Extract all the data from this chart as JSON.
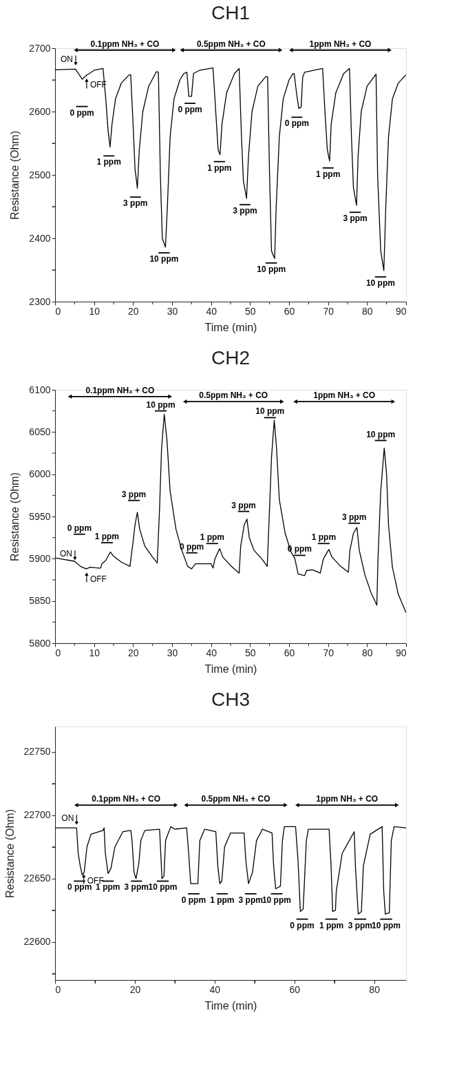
{
  "chart_data": [
    {
      "type": "line",
      "title": "CH1",
      "xlabel": "Time (min)",
      "ylabel": "Resistance (Ohm)",
      "xlim": [
        0,
        90
      ],
      "xticks": [
        0,
        {
          "value": 5,
          "label": null
        },
        10,
        {
          "value": 15,
          "label": null
        },
        20,
        {
          "value": 25,
          "label": null
        },
        30,
        {
          "value": 35,
          "label": null
        },
        40,
        {
          "value": 45,
          "label": null
        },
        50,
        {
          "value": 55,
          "label": null
        },
        60,
        {
          "value": 65,
          "label": null
        },
        70,
        {
          "value": 75,
          "label": null
        },
        80,
        {
          "value": 85,
          "label": null
        },
        90
      ],
      "ylim": [
        2300,
        2700
      ],
      "yticks": [
        2300,
        {
          "value": 2350,
          "label": null
        },
        2400,
        {
          "value": 2450,
          "label": null
        },
        2500,
        {
          "value": 2550,
          "label": null
        },
        2600,
        {
          "value": 2650,
          "label": null
        },
        2700
      ],
      "series": [
        {
          "color": "#000000",
          "x": [
            0,
            5.2,
            7,
            8,
            10,
            12.3,
            13,
            13.6,
            14.1,
            14.6,
            15.5,
            17,
            19,
            19.4,
            20,
            20.5,
            21.1,
            21.6,
            22.5,
            24,
            26,
            26.5,
            27,
            27.5,
            28.3,
            28.8,
            29.5,
            30.5,
            32,
            33,
            33.8,
            34.3,
            35,
            35.5,
            37,
            40.5,
            41,
            41.8,
            42.3,
            42.8,
            44,
            46,
            47.2,
            47.8,
            48.3,
            49.1,
            49.6,
            50.5,
            52,
            54,
            54.5,
            55,
            55.5,
            56.3,
            56.7,
            57.5,
            58.5,
            60,
            61,
            61.3,
            62,
            62.5,
            63.1,
            63.5,
            64,
            68.6,
            69.2,
            69.8,
            70.4,
            70.8,
            72,
            74,
            75.5,
            76,
            76.5,
            77.3,
            77.7,
            78.5,
            80,
            82.3,
            82.7,
            83.5,
            84.3,
            84.8,
            85.5,
            86.5,
            88,
            90
          ],
          "values": [
            2666,
            2667,
            2651,
            2657,
            2665,
            2668,
            2620,
            2570,
            2544,
            2580,
            2620,
            2645,
            2658,
            2658,
            2580,
            2510,
            2479,
            2540,
            2600,
            2640,
            2663,
            2662,
            2500,
            2400,
            2386,
            2450,
            2560,
            2620,
            2650,
            2660,
            2662,
            2624,
            2624,
            2660,
            2665,
            2669,
            2620,
            2540,
            2532,
            2580,
            2630,
            2660,
            2668,
            2560,
            2490,
            2463,
            2530,
            2600,
            2640,
            2655,
            2655,
            2500,
            2380,
            2368,
            2450,
            2560,
            2620,
            2650,
            2660,
            2660,
            2625,
            2605,
            2607,
            2655,
            2662,
            2668,
            2600,
            2540,
            2522,
            2580,
            2630,
            2660,
            2668,
            2560,
            2480,
            2452,
            2530,
            2600,
            2640,
            2659,
            2500,
            2380,
            2349,
            2450,
            2560,
            2620,
            2645,
            2658
          ]
        },
        {
          "name": "0 ppm",
          "color": "#000000",
          "x": [
            5.4,
            8.4
          ],
          "values": [
            2608,
            2608
          ]
        },
        {
          "name": "1 ppm",
          "color": "#000000",
          "x": [
            12.4,
            15.2
          ],
          "values": [
            2530,
            2530
          ]
        },
        {
          "name": "3 ppm",
          "color": "#000000",
          "x": [
            19.2,
            22
          ],
          "values": [
            2465,
            2465
          ]
        },
        {
          "name": "10 ppm",
          "color": "#000000",
          "x": [
            26.5,
            29.4
          ],
          "values": [
            2377,
            2377
          ]
        },
        {
          "name": "0 ppm",
          "color": "#000000",
          "x": [
            33.2,
            36
          ],
          "values": [
            2613,
            2613
          ]
        },
        {
          "name": "1 ppm",
          "color": "#000000",
          "x": [
            40.7,
            43.6
          ],
          "values": [
            2521,
            2521
          ]
        },
        {
          "name": "3 ppm",
          "color": "#000000",
          "x": [
            47.3,
            50.1
          ],
          "values": [
            2453,
            2453
          ]
        },
        {
          "name": "10 ppm",
          "color": "#000000",
          "x": [
            54,
            56.9
          ],
          "values": [
            2361,
            2361
          ]
        },
        {
          "name": "0 ppm",
          "color": "#000000",
          "x": [
            60.6,
            63.4
          ],
          "values": [
            2591,
            2591
          ]
        },
        {
          "name": "1 ppm",
          "color": "#000000",
          "x": [
            68.6,
            71.4
          ],
          "values": [
            2511,
            2511
          ]
        },
        {
          "name": "3 ppm",
          "color": "#000000",
          "x": [
            75.5,
            78.4
          ],
          "values": [
            2441,
            2441
          ]
        },
        {
          "name": "10 ppm",
          "color": "#000000",
          "x": [
            82,
            84.9
          ],
          "values": [
            2339,
            2339
          ]
        },
        {
          "name": "0.1ppm NH₃ + CO",
          "color": "#000000",
          "marker": "triangle",
          "x": [
            5.3,
            30.5
          ],
          "values": [
            2697,
            2697
          ]
        },
        {
          "name": "0.5ppm NH₃ + CO",
          "color": "#000000",
          "marker": "triangle",
          "x": [
            32.5,
            57.8
          ],
          "values": [
            2697,
            2697
          ]
        },
        {
          "name": "1ppm NH₃ + CO",
          "color": "#000000",
          "marker": "triangle",
          "x": [
            60.5,
            85.8
          ],
          "values": [
            2697,
            2697
          ]
        }
      ],
      "annotations": [
        {
          "text": "ON",
          "x": 5.3,
          "y": 2670
        },
        {
          "text": "OFF",
          "x": 8.1,
          "y": 2655
        }
      ]
    },
    {
      "type": "line",
      "title": "CH2",
      "xlabel": "Time (min)",
      "ylabel": "Resistance (Ohm)",
      "xlim": [
        0,
        90
      ],
      "xticks": [
        0,
        {
          "value": 5,
          "label": null
        },
        10,
        {
          "value": 15,
          "label": null
        },
        20,
        {
          "value": 25,
          "label": null
        },
        30,
        {
          "value": 35,
          "label": null
        },
        40,
        {
          "value": 45,
          "label": null
        },
        50,
        {
          "value": 55,
          "label": null
        },
        60,
        {
          "value": 65,
          "label": null
        },
        70,
        {
          "value": 75,
          "label": null
        },
        80,
        {
          "value": 85,
          "label": null
        },
        90
      ],
      "ylim": [
        5800,
        6100
      ],
      "yticks": [
        5800,
        {
          "value": 5825,
          "label": null
        },
        5850,
        {
          "value": 5875,
          "label": null
        },
        5900,
        {
          "value": 5925,
          "label": null
        },
        5950,
        {
          "value": 5975,
          "label": null
        },
        6000,
        {
          "value": 6025,
          "label": null
        },
        6050,
        {
          "value": 6075,
          "label": null
        },
        6100
      ],
      "series": [
        {
          "color": "#000000",
          "x": [
            0,
            5,
            6.5,
            8,
            9,
            11,
            11.7,
            12,
            12.5,
            13,
            14.2,
            15,
            17,
            19.2,
            20,
            20.5,
            21.1,
            21.7,
            23,
            25,
            26.2,
            26.8,
            27.3,
            28,
            28.7,
            29.5,
            31,
            32.5,
            34,
            35,
            36,
            40,
            40.5,
            41,
            42.2,
            43,
            45,
            47.2,
            47.6,
            48.5,
            49.2,
            49.8,
            51,
            53,
            54.4,
            55,
            55.5,
            56.2,
            56.8,
            57.5,
            59,
            60.5,
            61.5,
            62.3,
            64,
            64.5,
            66,
            68,
            68.8,
            70.2,
            71,
            73,
            75.2,
            75.6,
            76.5,
            77.4,
            78,
            79.5,
            81,
            82.5,
            82.8,
            83.5,
            84.4,
            85,
            85.5,
            86.5,
            88,
            90
          ],
          "values": [
            5901,
            5897,
            5891,
            5888,
            5890,
            5889,
            5889,
            5894,
            5896,
            5898,
            5908,
            5903,
            5896,
            5891,
            5920,
            5940,
            5955,
            5935,
            5915,
            5902,
            5895,
            5960,
            6030,
            6071,
            6040,
            5980,
            5935,
            5910,
            5891,
            5888,
            5894,
            5894,
            5889,
            5900,
            5912,
            5902,
            5892,
            5883,
            5915,
            5940,
            5947,
            5925,
            5910,
            5900,
            5891,
            5960,
            6020,
            6064,
            6030,
            5970,
            5930,
            5908,
            5900,
            5882,
            5880,
            5886,
            5887,
            5883,
            5900,
            5911,
            5902,
            5892,
            5884,
            5910,
            5930,
            5937,
            5910,
            5880,
            5860,
            5845,
            5900,
            5980,
            6031,
            6000,
            5940,
            5890,
            5858,
            5836
          ]
        },
        {
          "name": "0 ppm",
          "color": "#000000",
          "x": [
            4.8,
            7.7
          ],
          "values": [
            5929,
            5929
          ]
        },
        {
          "name": "1 ppm",
          "color": "#000000",
          "x": [
            11.8,
            14.8
          ],
          "values": [
            5919,
            5919
          ]
        },
        {
          "name": "3 ppm",
          "color": "#000000",
          "x": [
            18.7,
            21.7
          ],
          "values": [
            5969,
            5969
          ]
        },
        {
          "name": "10 ppm",
          "color": "#000000",
          "x": [
            25.6,
            28.6
          ],
          "values": [
            6075,
            6075
          ]
        },
        {
          "name": "0 ppm",
          "color": "#000000",
          "x": [
            33.6,
            36.5
          ],
          "values": [
            5907,
            5907
          ]
        },
        {
          "name": "1 ppm",
          "color": "#000000",
          "x": [
            38.8,
            41.8
          ],
          "values": [
            5918,
            5918
          ]
        },
        {
          "name": "3 ppm",
          "color": "#000000",
          "x": [
            46.9,
            49.8
          ],
          "values": [
            5956,
            5956
          ]
        },
        {
          "name": "10 ppm",
          "color": "#000000",
          "x": [
            53.6,
            56.6
          ],
          "values": [
            6067,
            6067
          ]
        },
        {
          "name": "0 ppm",
          "color": "#000000",
          "x": [
            61.2,
            64.2
          ],
          "values": [
            5904,
            5904
          ]
        },
        {
          "name": "1 ppm",
          "color": "#000000",
          "x": [
            67.4,
            70.4
          ],
          "values": [
            5918,
            5918
          ]
        },
        {
          "name": "3 ppm",
          "color": "#000000",
          "x": [
            75.2,
            78.2
          ],
          "values": [
            5942,
            5942
          ]
        },
        {
          "name": "10 ppm",
          "color": "#000000",
          "x": [
            82,
            85
          ],
          "values": [
            6040,
            6040
          ]
        },
        {
          "name": "0.1ppm NH₃ + CO",
          "color": "#000000",
          "marker": "triangle",
          "x": [
            3.8,
            29.5
          ],
          "values": [
            6092,
            6092
          ]
        },
        {
          "name": "0.5ppm NH₃ + CO",
          "color": "#000000",
          "marker": "triangle",
          "x": [
            33.3,
            58.2
          ],
          "values": [
            6086,
            6086
          ]
        },
        {
          "name": "1ppm NH₃ + CO",
          "color": "#000000",
          "marker": "triangle",
          "x": [
            61.6,
            86.7
          ],
          "values": [
            6086,
            6086
          ]
        }
      ],
      "annotations": [
        {
          "text": "ON",
          "x": 5.1,
          "y": 5896
        },
        {
          "text": "OFF",
          "x": 8.1,
          "y": 5886
        }
      ]
    },
    {
      "type": "line",
      "title": "CH3",
      "xlabel": "Time (min)",
      "ylabel": "Resistance (Ohm)",
      "xlim": [
        0,
        88
      ],
      "xticks": [
        0,
        {
          "value": 10,
          "label": null
        },
        20,
        {
          "value": 30,
          "label": null
        },
        40,
        {
          "value": 50,
          "label": null
        },
        60,
        {
          "value": 70,
          "label": null
        },
        80
      ],
      "ylim": [
        22570,
        22770
      ],
      "yticks": [
        {
          "value": 22575,
          "label": null
        },
        22600,
        {
          "value": 22625,
          "label": null
        },
        22650,
        {
          "value": 22675,
          "label": null
        },
        22700,
        {
          "value": 22725,
          "label": null
        },
        22750
      ],
      "series": [
        {
          "color": "#000000",
          "x": [
            0,
            5.4,
            5.8,
            6.3,
            6.8,
            7.3,
            8,
            9,
            12,
            12.3,
            12.6,
            13.3,
            14,
            15,
            17,
            19,
            19.3,
            19.8,
            20.3,
            21,
            21.5,
            22.5,
            26.2,
            26.5,
            26.8,
            27.3,
            27.7,
            29,
            30,
            33,
            33.5,
            34,
            35.8,
            36.3,
            37.5,
            40.3,
            40.8,
            41.3,
            41.8,
            42.5,
            44,
            47.4,
            47.8,
            48.5,
            49.5,
            50.5,
            52,
            54.4,
            54.8,
            55.3,
            56.5,
            57,
            57.5,
            60.3,
            60.9,
            61.5,
            62.2,
            63,
            63.5,
            68.7,
            69.2,
            69.6,
            70.3,
            70.5,
            72,
            75,
            75.3,
            76,
            76.8,
            77.3,
            79,
            82,
            82.4,
            82.8,
            83.8,
            84.3,
            85,
            88
          ],
          "values": [
            22690,
            22690,
            22670,
            22660,
            22653,
            22655,
            22675,
            22685,
            22688,
            22690,
            22670,
            22654,
            22658,
            22675,
            22687,
            22688,
            22680,
            22655,
            22650,
            22662,
            22680,
            22688,
            22689,
            22670,
            22650,
            22652,
            22680,
            22691,
            22689,
            22690,
            22670,
            22646,
            22646,
            22680,
            22689,
            22687,
            22660,
            22646,
            22648,
            22675,
            22686,
            22686,
            22665,
            22646,
            22655,
            22680,
            22689,
            22686,
            22660,
            22642,
            22644,
            22680,
            22691,
            22691,
            22665,
            22624,
            22626,
            22680,
            22689,
            22689,
            22660,
            22624,
            22625,
            22640,
            22670,
            22687,
            22660,
            22622,
            22624,
            22660,
            22685,
            22691,
            22640,
            22622,
            22623,
            22680,
            22691,
            22690
          ]
        },
        {
          "name": "0 ppm",
          "color": "#000000",
          "x": [
            4.7,
            7.6
          ],
          "values": [
            22648,
            22648
          ]
        },
        {
          "name": "1 ppm",
          "color": "#000000",
          "x": [
            11.8,
            14.7
          ],
          "values": [
            22648,
            22648
          ]
        },
        {
          "name": "3 ppm",
          "color": "#000000",
          "x": [
            19,
            21.8
          ],
          "values": [
            22648,
            22648
          ]
        },
        {
          "name": "10 ppm",
          "color": "#000000",
          "x": [
            25.5,
            28.5
          ],
          "values": [
            22648,
            22648
          ]
        },
        {
          "name": "0 ppm",
          "color": "#000000",
          "x": [
            33.3,
            36.2
          ],
          "values": [
            22638,
            22638
          ]
        },
        {
          "name": "1 ppm",
          "color": "#000000",
          "x": [
            40.5,
            43.3
          ],
          "values": [
            22638,
            22638
          ]
        },
        {
          "name": "3 ppm",
          "color": "#000000",
          "x": [
            47.6,
            50.5
          ],
          "values": [
            22638,
            22638
          ]
        },
        {
          "name": "10 ppm",
          "color": "#000000",
          "x": [
            54.1,
            57
          ],
          "values": [
            22638,
            22638
          ]
        },
        {
          "name": "0 ppm",
          "color": "#000000",
          "x": [
            60.5,
            63.4
          ],
          "values": [
            22618,
            22618
          ]
        },
        {
          "name": "1 ppm",
          "color": "#000000",
          "x": [
            67.8,
            70.8
          ],
          "values": [
            22618,
            22618
          ]
        },
        {
          "name": "3 ppm",
          "color": "#000000",
          "x": [
            75,
            78
          ],
          "values": [
            22618,
            22618
          ]
        },
        {
          "name": "10 ppm",
          "color": "#000000",
          "x": [
            81.5,
            84.5
          ],
          "values": [
            22618,
            22618
          ]
        },
        {
          "name": "0.1ppm NH₃ + CO",
          "color": "#000000",
          "marker": "triangle",
          "x": [
            5.3,
            30.3
          ],
          "values": [
            22708,
            22708
          ]
        },
        {
          "name": "0.5ppm NH₃ + CO",
          "color": "#000000",
          "marker": "triangle",
          "x": [
            32.8,
            57.8
          ],
          "values": [
            22708,
            22708
          ]
        },
        {
          "name": "1ppm NH₃ + CO",
          "color": "#000000",
          "marker": "triangle",
          "x": [
            60.7,
            85.7
          ],
          "values": [
            22708,
            22708
          ]
        }
      ],
      "annotations": [
        {
          "text": "ON",
          "x": 5.4,
          "y": 22691
        },
        {
          "text": "OFF",
          "x": 7.2,
          "y": 22655
        }
      ]
    }
  ]
}
